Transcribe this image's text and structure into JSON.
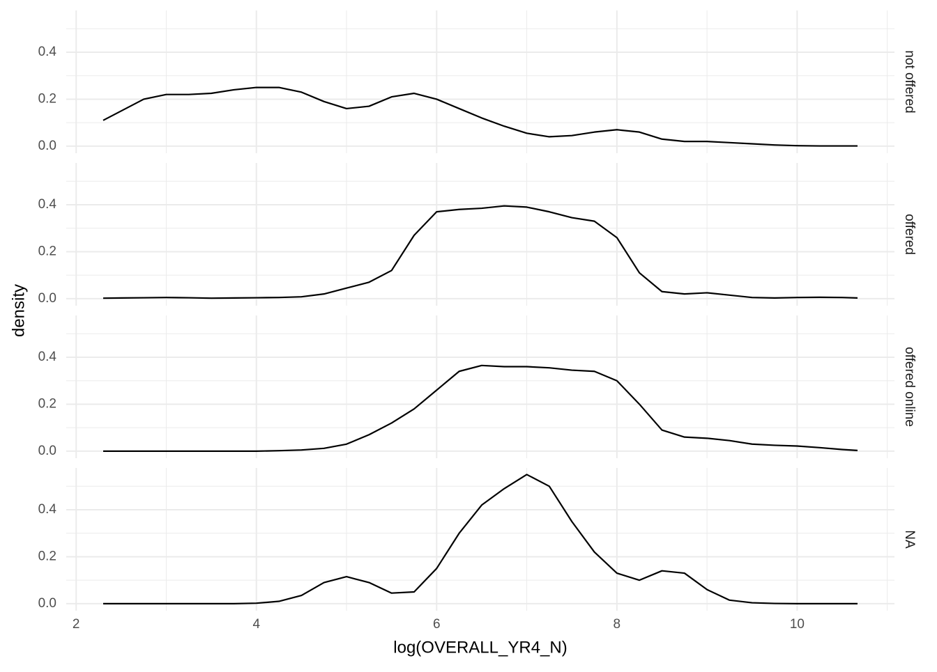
{
  "chart_data": {
    "type": "line",
    "facet_rows": true,
    "xlabel": "log(OVERALL_YR4_N)",
    "ylabel": "density",
    "xlim": [
      1.89,
      11.08
    ],
    "xticks": [
      2,
      4,
      6,
      8,
      10
    ],
    "xminor": [
      3,
      5,
      7,
      9,
      11
    ],
    "ylim": [
      -0.03,
      0.578
    ],
    "yticks": [
      {
        "value": 0,
        "label": "0.0"
      },
      0.2,
      0.4
    ],
    "yminor": [
      0.1,
      0.3,
      0.5
    ],
    "grid": true,
    "x": [
      2.3,
      2.5,
      2.75,
      3.0,
      3.25,
      3.5,
      3.75,
      4.0,
      4.25,
      4.5,
      4.75,
      5.0,
      5.25,
      5.5,
      5.75,
      6.0,
      6.25,
      6.5,
      6.75,
      7.0,
      7.25,
      7.5,
      7.75,
      8.0,
      8.25,
      8.5,
      8.75,
      9.0,
      9.25,
      9.5,
      9.75,
      10.0,
      10.25,
      10.5,
      10.67
    ],
    "series": [
      {
        "name": "not offered",
        "color": "#000000",
        "values": [
          0.11,
          0.15,
          0.2,
          0.22,
          0.22,
          0.225,
          0.24,
          0.25,
          0.25,
          0.23,
          0.19,
          0.16,
          0.17,
          0.21,
          0.225,
          0.2,
          0.16,
          0.12,
          0.085,
          0.055,
          0.04,
          0.045,
          0.06,
          0.07,
          0.06,
          0.03,
          0.02,
          0.02,
          0.015,
          0.01,
          0.005,
          0.002,
          0.001,
          0.001,
          0.001
        ]
      },
      {
        "name": "offered",
        "color": "#000000",
        "values": [
          0.002,
          0.003,
          0.004,
          0.005,
          0.004,
          0.002,
          0.003,
          0.004,
          0.005,
          0.008,
          0.02,
          0.045,
          0.07,
          0.12,
          0.27,
          0.37,
          0.38,
          0.385,
          0.395,
          0.39,
          0.37,
          0.345,
          0.33,
          0.26,
          0.11,
          0.03,
          0.02,
          0.025,
          0.015,
          0.005,
          0.003,
          0.005,
          0.006,
          0.005,
          0.003
        ]
      },
      {
        "name": "offered online",
        "color": "#000000",
        "values": [
          0,
          0,
          0,
          0,
          0,
          0,
          0,
          0,
          0.002,
          0.005,
          0.012,
          0.03,
          0.07,
          0.12,
          0.18,
          0.26,
          0.34,
          0.365,
          0.36,
          0.36,
          0.355,
          0.345,
          0.34,
          0.3,
          0.2,
          0.09,
          0.06,
          0.055,
          0.045,
          0.03,
          0.025,
          0.022,
          0.015,
          0.007,
          0.003
        ]
      },
      {
        "name": "NA",
        "color": "#000000",
        "values": [
          0,
          0,
          0,
          0,
          0,
          0,
          0,
          0.002,
          0.01,
          0.035,
          0.09,
          0.115,
          0.09,
          0.045,
          0.05,
          0.15,
          0.3,
          0.42,
          0.49,
          0.55,
          0.5,
          0.35,
          0.22,
          0.13,
          0.1,
          0.14,
          0.13,
          0.06,
          0.015,
          0.004,
          0.001,
          0,
          0,
          0,
          0
        ]
      }
    ]
  }
}
